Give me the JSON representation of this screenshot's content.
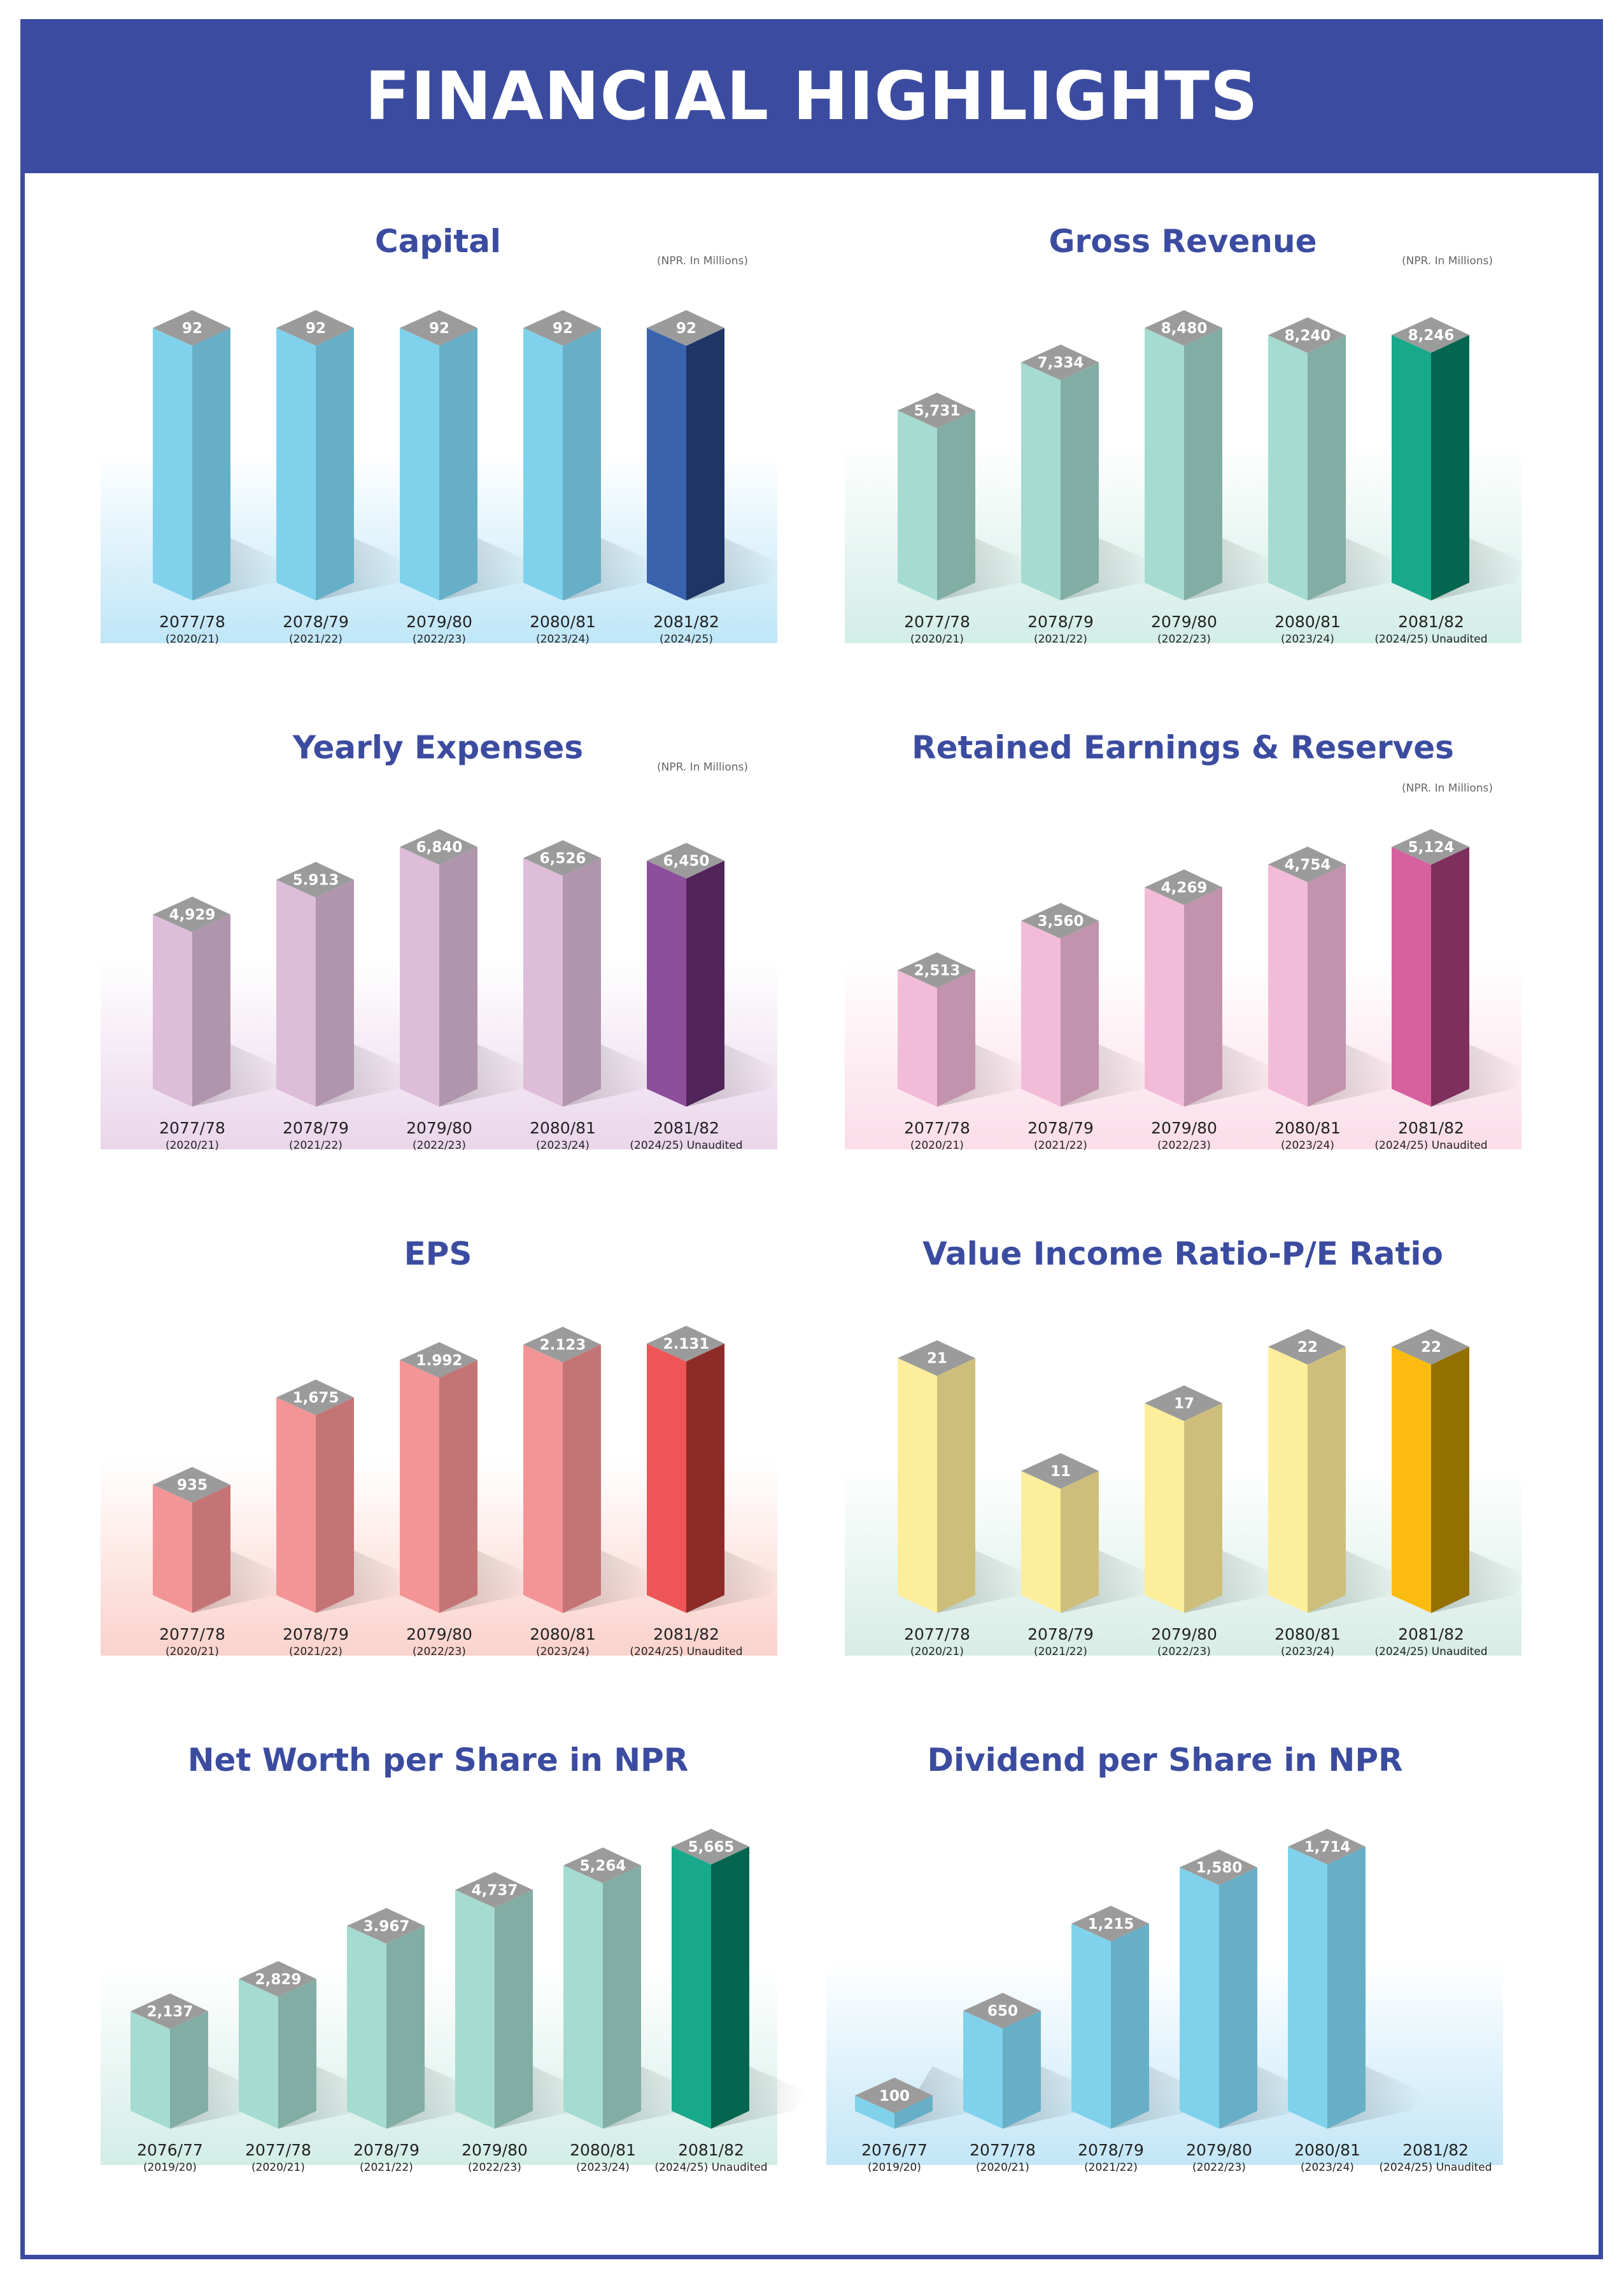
{
  "page_title": "FINANCIAL HIGHLIGHTS",
  "colors": {
    "brand": "#3b4ca0"
  },
  "chart_data": [
    {
      "type": "bar",
      "title": "Capital",
      "unit_note": "(NPR. In Millions)",
      "categories": [
        "2077/78",
        "2078/79",
        "2079/80",
        "2080/81",
        "2081/82"
      ],
      "sub_labels": [
        "(2020/21)",
        "(2021/22)",
        "(2022/23)",
        "(2023/24)",
        "(2024/25)"
      ],
      "values": [
        92,
        92,
        92,
        92,
        92
      ],
      "value_labels": [
        "92",
        "92",
        "92",
        "92",
        "92"
      ],
      "ylim": [
        0,
        92
      ],
      "colors": {
        "face": "#80d2ec",
        "side": "#67afc7",
        "hl_face": "#3a63ad",
        "hl_side": "#1f3566",
        "bg_top": "#ffffff",
        "bg_bottom": "#bfe6f8"
      },
      "highlight_last": true
    },
    {
      "type": "bar",
      "title": "Gross Revenue",
      "unit_note": "(NPR. In Millions)",
      "categories": [
        "2077/78",
        "2078/79",
        "2079/80",
        "2080/81",
        "2081/82"
      ],
      "sub_labels": [
        "(2020/21)",
        "(2021/22)",
        "(2022/23)",
        "(2023/24)",
        "(2024/25) Unaudited"
      ],
      "values": [
        5731,
        7334,
        8480,
        8240,
        8246
      ],
      "value_labels": [
        "5,731",
        "7,334",
        "8,480",
        "8,240",
        "8,246"
      ],
      "ylim": [
        0,
        8480
      ],
      "colors": {
        "face": "#a5dbd0",
        "side": "#82ada4",
        "hl_face": "#17a98a",
        "hl_side": "#04664f",
        "bg_top": "#ffffff",
        "bg_bottom": "#d3ede7"
      },
      "highlight_last": true
    },
    {
      "type": "bar",
      "title": "Yearly Expenses",
      "unit_note": "(NPR. In Millions)",
      "categories": [
        "2077/78",
        "2078/79",
        "2079/80",
        "2080/81",
        "2081/82"
      ],
      "sub_labels": [
        "(2020/21)",
        "(2021/22)",
        "(2022/23)",
        "(2023/24)",
        "(2024/25) Unaudited"
      ],
      "values": [
        4929,
        5913,
        6840,
        6526,
        6450
      ],
      "value_labels": [
        "4,929",
        "5.913",
        "6,840",
        "6,526",
        "6,450"
      ],
      "ylim": [
        0,
        6840
      ],
      "colors": {
        "face": "#ddbdd8",
        "side": "#b095ad",
        "hl_face": "#8d4f9b",
        "hl_side": "#51245a",
        "bg_top": "#ffffff",
        "bg_bottom": "#ead6ea"
      },
      "highlight_last": true
    },
    {
      "type": "bar",
      "title": "Retained Earnings & Reserves",
      "unit_note": "(NPR. In Millions)",
      "categories": [
        "2077/78",
        "2078/79",
        "2079/80",
        "2080/81",
        "2081/82"
      ],
      "sub_labels": [
        "(2020/21)",
        "(2021/22)",
        "(2022/23)",
        "(2023/24)",
        "(2024/25) Unaudited"
      ],
      "values": [
        2513,
        3560,
        4269,
        4754,
        5124
      ],
      "value_labels": [
        "2,513",
        "3,560",
        "4,269",
        "4,754",
        "5,124"
      ],
      "ylim": [
        0,
        5124
      ],
      "colors": {
        "face": "#f2bcd8",
        "side": "#c293ac",
        "hl_face": "#d7609f",
        "hl_side": "#7e2f5b",
        "bg_top": "#ffffff",
        "bg_bottom": "#fbdde9"
      },
      "highlight_last": true
    },
    {
      "type": "bar",
      "title": "EPS",
      "unit_note": "",
      "categories": [
        "2077/78",
        "2078/79",
        "2079/80",
        "2080/81",
        "2081/82"
      ],
      "sub_labels": [
        "(2020/21)",
        "(2021/22)",
        "(2022/23)",
        "(2023/24)",
        "(2024/25) Unaudited"
      ],
      "values": [
        935,
        1675,
        1992,
        2123,
        2131
      ],
      "value_labels": [
        "935",
        "1,675",
        "1.992",
        "2.123",
        "2.131"
      ],
      "ylim": [
        0,
        2131
      ],
      "colors": {
        "face": "#f39596",
        "side": "#c47475",
        "hl_face": "#ee5556",
        "hl_side": "#8d2b28",
        "bg_top": "#ffffff",
        "bg_bottom": "#fbd2cc"
      },
      "highlight_last": true
    },
    {
      "type": "bar",
      "title": "Value Income Ratio-P/E Ratio",
      "unit_note": "",
      "categories": [
        "2077/78",
        "2078/79",
        "2079/80",
        "2080/81",
        "2081/82"
      ],
      "sub_labels": [
        "(2020/21)",
        "(2021/22)",
        "(2022/23)",
        "(2023/24)",
        "(2024/25) Unaudited"
      ],
      "values": [
        21,
        11,
        17,
        22,
        22
      ],
      "value_labels": [
        "21",
        "11",
        "17",
        "22",
        "22"
      ],
      "ylim": [
        0,
        22
      ],
      "colors": {
        "face": "#fdee9b",
        "side": "#cdbf7b",
        "hl_face": "#fcbb10",
        "hl_side": "#937000",
        "bg_top": "#ffffff",
        "bg_bottom": "#d7ede6"
      },
      "highlight_last": true
    },
    {
      "type": "bar",
      "title": "Net Worth per Share in NPR",
      "unit_note": "",
      "categories": [
        "2076/77",
        "2077/78",
        "2078/79",
        "2079/80",
        "2080/81",
        "2081/82"
      ],
      "sub_labels": [
        "(2019/20)",
        "(2020/21)",
        "(2021/22)",
        "(2022/23)",
        "(2023/24)",
        "(2024/25) Unaudited"
      ],
      "values": [
        2137,
        2829,
        3967,
        4737,
        5264,
        5665
      ],
      "value_labels": [
        "2,137",
        "2,829",
        "3.967",
        "4,737",
        "5,264",
        "5,665"
      ],
      "ylim": [
        0,
        5665
      ],
      "colors": {
        "face": "#a5dbd0",
        "side": "#82ada4",
        "hl_face": "#17a98a",
        "hl_side": "#04664f",
        "bg_top": "#ffffff",
        "bg_bottom": "#d3ede7"
      },
      "highlight_last": true
    },
    {
      "type": "bar",
      "title": "Dividend per Share in NPR",
      "unit_note": "",
      "categories": [
        "2076/77",
        "2077/78",
        "2078/79",
        "2079/80",
        "2080/81",
        "2081/82"
      ],
      "sub_labels": [
        "(2019/20)",
        "(2020/21)",
        "(2021/22)",
        "(2022/23)",
        "(2023/24)",
        "(2024/25) Unaudited"
      ],
      "values": [
        100,
        650,
        1215,
        1580,
        1714,
        null
      ],
      "value_labels": [
        "100",
        "650",
        "1,215",
        "1,580",
        "1,714",
        ""
      ],
      "ylim": [
        0,
        1714
      ],
      "colors": {
        "face": "#80d2ec",
        "side": "#67afc7",
        "hl_face": "#80d2ec",
        "hl_side": "#67afc7",
        "bg_top": "#ffffff",
        "bg_bottom": "#c3e6f7"
      },
      "highlight_last": false
    }
  ]
}
